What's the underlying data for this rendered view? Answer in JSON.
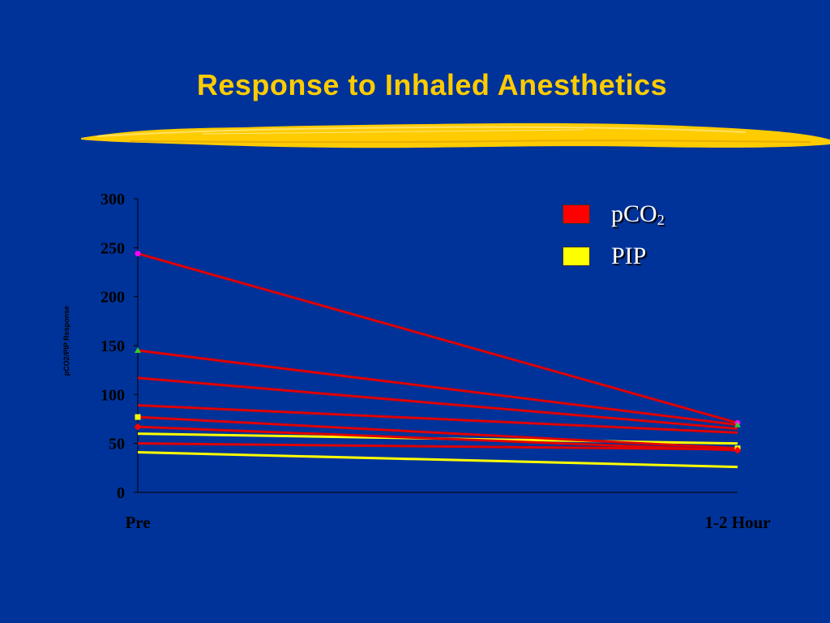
{
  "slide": {
    "title": "Response to Inhaled Anesthetics",
    "accent_color": "#ffcc00",
    "background_color": "#003399"
  },
  "legend": {
    "placement": "top-right",
    "items": [
      {
        "label": "pCO",
        "subscript": "2",
        "color": "#ff0000"
      },
      {
        "label": "PIP",
        "subscript": "",
        "color": "#ffff00"
      }
    ]
  },
  "chart_data": {
    "type": "line",
    "title": "",
    "xlabel": "",
    "ylabel": "pCO2/PIP Response",
    "categories": [
      "Pre",
      "1-2 Hour"
    ],
    "ylim": [
      0,
      300
    ],
    "yticks": [
      0,
      50,
      100,
      150,
      200,
      250,
      300
    ],
    "grid": false,
    "series": [
      {
        "values": [
          244,
          71
        ],
        "color": "#e00000",
        "marker": "circle-magenta"
      },
      {
        "values": [
          145,
          69
        ],
        "color": "#e00000",
        "marker": "triangle-green"
      },
      {
        "values": [
          117,
          65
        ],
        "color": "#e00000",
        "marker": "none"
      },
      {
        "values": [
          89,
          61
        ],
        "color": "#e00000",
        "marker": "none"
      },
      {
        "values": [
          77,
          45
        ],
        "color": "#e00000",
        "marker": "square-yellow"
      },
      {
        "values": [
          67,
          43
        ],
        "color": "#e00000",
        "marker": "diamond-red"
      },
      {
        "values": [
          50,
          44
        ],
        "color": "#e00000",
        "marker": "none"
      },
      {
        "values": [
          60,
          50
        ],
        "color": "#ffff00",
        "marker": "none"
      },
      {
        "values": [
          41,
          26
        ],
        "color": "#ffff00",
        "marker": "none"
      }
    ]
  }
}
